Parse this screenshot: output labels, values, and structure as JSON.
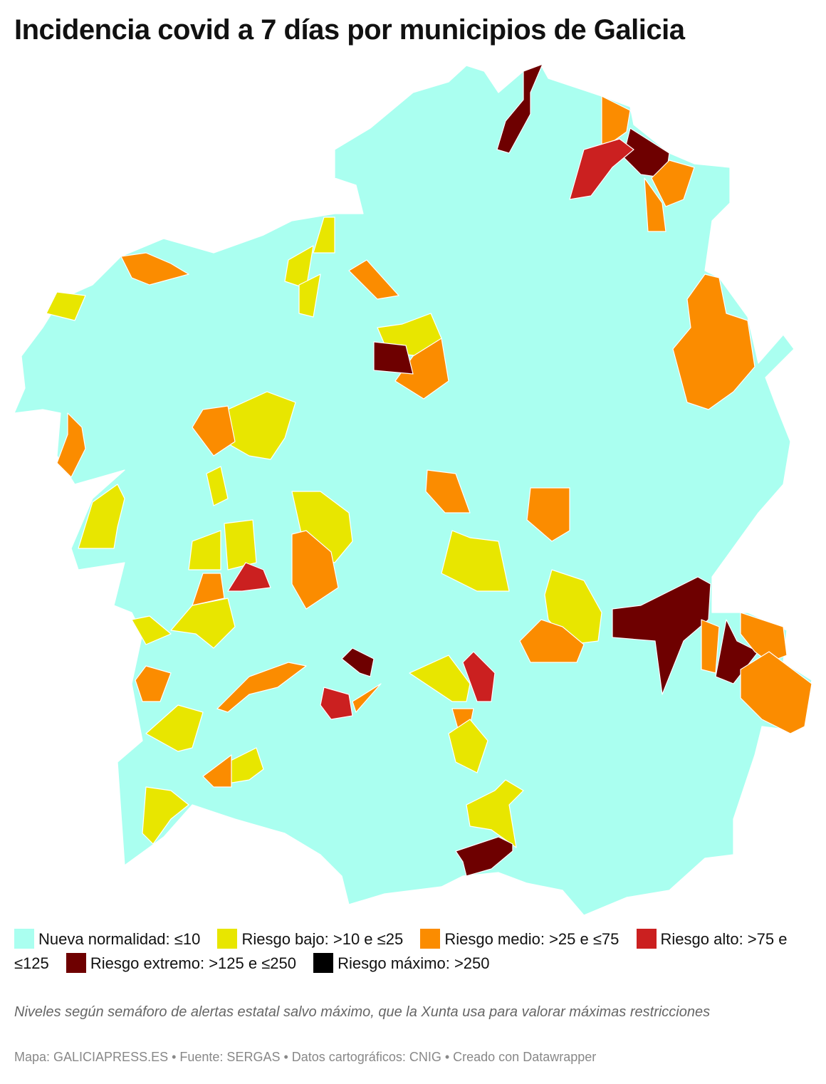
{
  "title": "Incidencia covid a 7 días por municipios de Galicia",
  "legend": [
    {
      "label": "Nueva normalidad: ≤10",
      "color": "#aafff0"
    },
    {
      "label": "Riesgo bajo: >10 e ≤25",
      "color": "#e8e600"
    },
    {
      "label": "Riesgo medio: >25 e ≤75",
      "color": "#fb8c00"
    },
    {
      "label": "Riesgo alto: >75 e ≤125",
      "color": "#cb2020"
    },
    {
      "label": "Riesgo extremo: >125 e ≤250",
      "color": "#6e0000"
    },
    {
      "label": "Riesgo máximo: >250",
      "color": "#000000"
    }
  ],
  "note": "Niveles según semáforo de alertas estatal salvo máximo, que la Xunta usa para valorar máximas restricciones",
  "credits": "Mapa: GALICIAPRESS.ES • Fuente: SERGAS • Datos cartográficos: CNIG • Creado con Datawrapper"
}
